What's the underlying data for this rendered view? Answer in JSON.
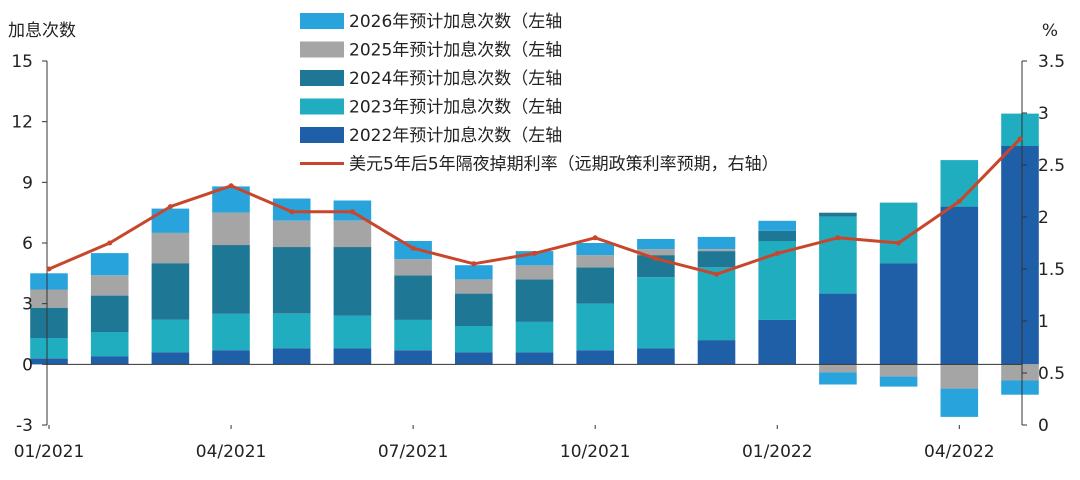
{
  "chart_data": {
    "type": "bar",
    "stacked": true,
    "ylabel_left": "加息次数",
    "ylabel_right": "%",
    "ylim_left": [
      -3,
      15
    ],
    "ylim_right": [
      0,
      3.5
    ],
    "yticks_left": [
      "15",
      "12",
      "9",
      "6",
      "3",
      "0",
      "-3"
    ],
    "yticks_right": [
      "3.5",
      "3",
      "2.5",
      "2",
      "1.5",
      "1",
      "0.5",
      "0"
    ],
    "x_tick_labels": [
      "01/2021",
      "04/2021",
      "07/2021",
      "10/2021",
      "01/2022",
      "04/2022"
    ],
    "grid": false,
    "legend_position": "top-left",
    "legend": [
      {
        "label": "2026年预计加息次数（左轴",
        "color": "#29a3dc"
      },
      {
        "label": "2025年预计加息次数（左轴",
        "color": "#a5a5a5"
      },
      {
        "label": "2024年预计加息次数（左轴",
        "color": "#1f7796"
      },
      {
        "label": "2023年预计加息次数（左轴",
        "color": "#20adc0"
      },
      {
        "label": "2022年预计加息次数（左轴",
        "color": "#1f5fa8"
      },
      {
        "label": "美元5年后5年隔夜掉期利率（远期政策利率预期，右轴）",
        "color": "#c8462c"
      }
    ],
    "period_labels": [
      "01/2021",
      "02/2021",
      "03/2021",
      "04/2021",
      "05/2021",
      "06/2021",
      "07/2021",
      "08/2021",
      "09/2021",
      "10/2021",
      "11/2021",
      "12/2021",
      "01/2022",
      "02/2022",
      "03/2022",
      "04/2022",
      "05/2022"
    ],
    "series": [
      {
        "name": "2022年预计加息次数（左轴",
        "axis": "left",
        "color": "#1f5fa8",
        "values": [
          0.3,
          0.4,
          0.6,
          0.7,
          0.8,
          0.8,
          0.7,
          0.6,
          0.6,
          0.7,
          0.8,
          1.2,
          2.2,
          3.5,
          5.0,
          7.8,
          10.8
        ]
      },
      {
        "name": "2023年预计加息次数（左轴",
        "axis": "left",
        "color": "#20adc0",
        "values": [
          1.0,
          1.2,
          1.6,
          1.8,
          1.7,
          1.6,
          1.5,
          1.3,
          1.5,
          2.3,
          3.5,
          3.6,
          3.9,
          3.8,
          3.0,
          2.3,
          1.6
        ]
      },
      {
        "name": "2024年预计加息次数（左轴",
        "axis": "left",
        "color": "#1f7796",
        "values": [
          1.5,
          1.8,
          2.8,
          3.4,
          3.3,
          3.4,
          2.2,
          1.6,
          2.1,
          1.8,
          1.1,
          0.8,
          0.5,
          0.2,
          0.0,
          0.0,
          0.0
        ]
      },
      {
        "name": "2025年预计加息次数（左轴",
        "axis": "left",
        "color": "#a5a5a5",
        "values": [
          0.9,
          1.0,
          1.5,
          1.6,
          1.3,
          1.3,
          0.8,
          0.7,
          0.7,
          0.6,
          0.3,
          0.1,
          0.0,
          -0.4,
          -0.6,
          -1.2,
          -0.8
        ]
      },
      {
        "name": "2026年预计加息次数（左轴",
        "axis": "left",
        "color": "#29a3dc",
        "values": [
          0.8,
          1.1,
          1.2,
          1.3,
          1.1,
          1.0,
          0.9,
          0.7,
          0.7,
          0.6,
          0.5,
          0.6,
          0.5,
          -0.6,
          -0.5,
          -1.4,
          -0.7
        ]
      },
      {
        "name": "美元5年后5年隔夜掉期利率（远期政策利率预期，右轴）",
        "axis": "right",
        "color": "#c8462c",
        "values": [
          1.5,
          1.75,
          2.1,
          2.3,
          2.05,
          2.05,
          1.7,
          1.55,
          1.65,
          1.8,
          1.6,
          1.45,
          1.65,
          1.8,
          1.75,
          2.15,
          2.75
        ]
      }
    ]
  }
}
